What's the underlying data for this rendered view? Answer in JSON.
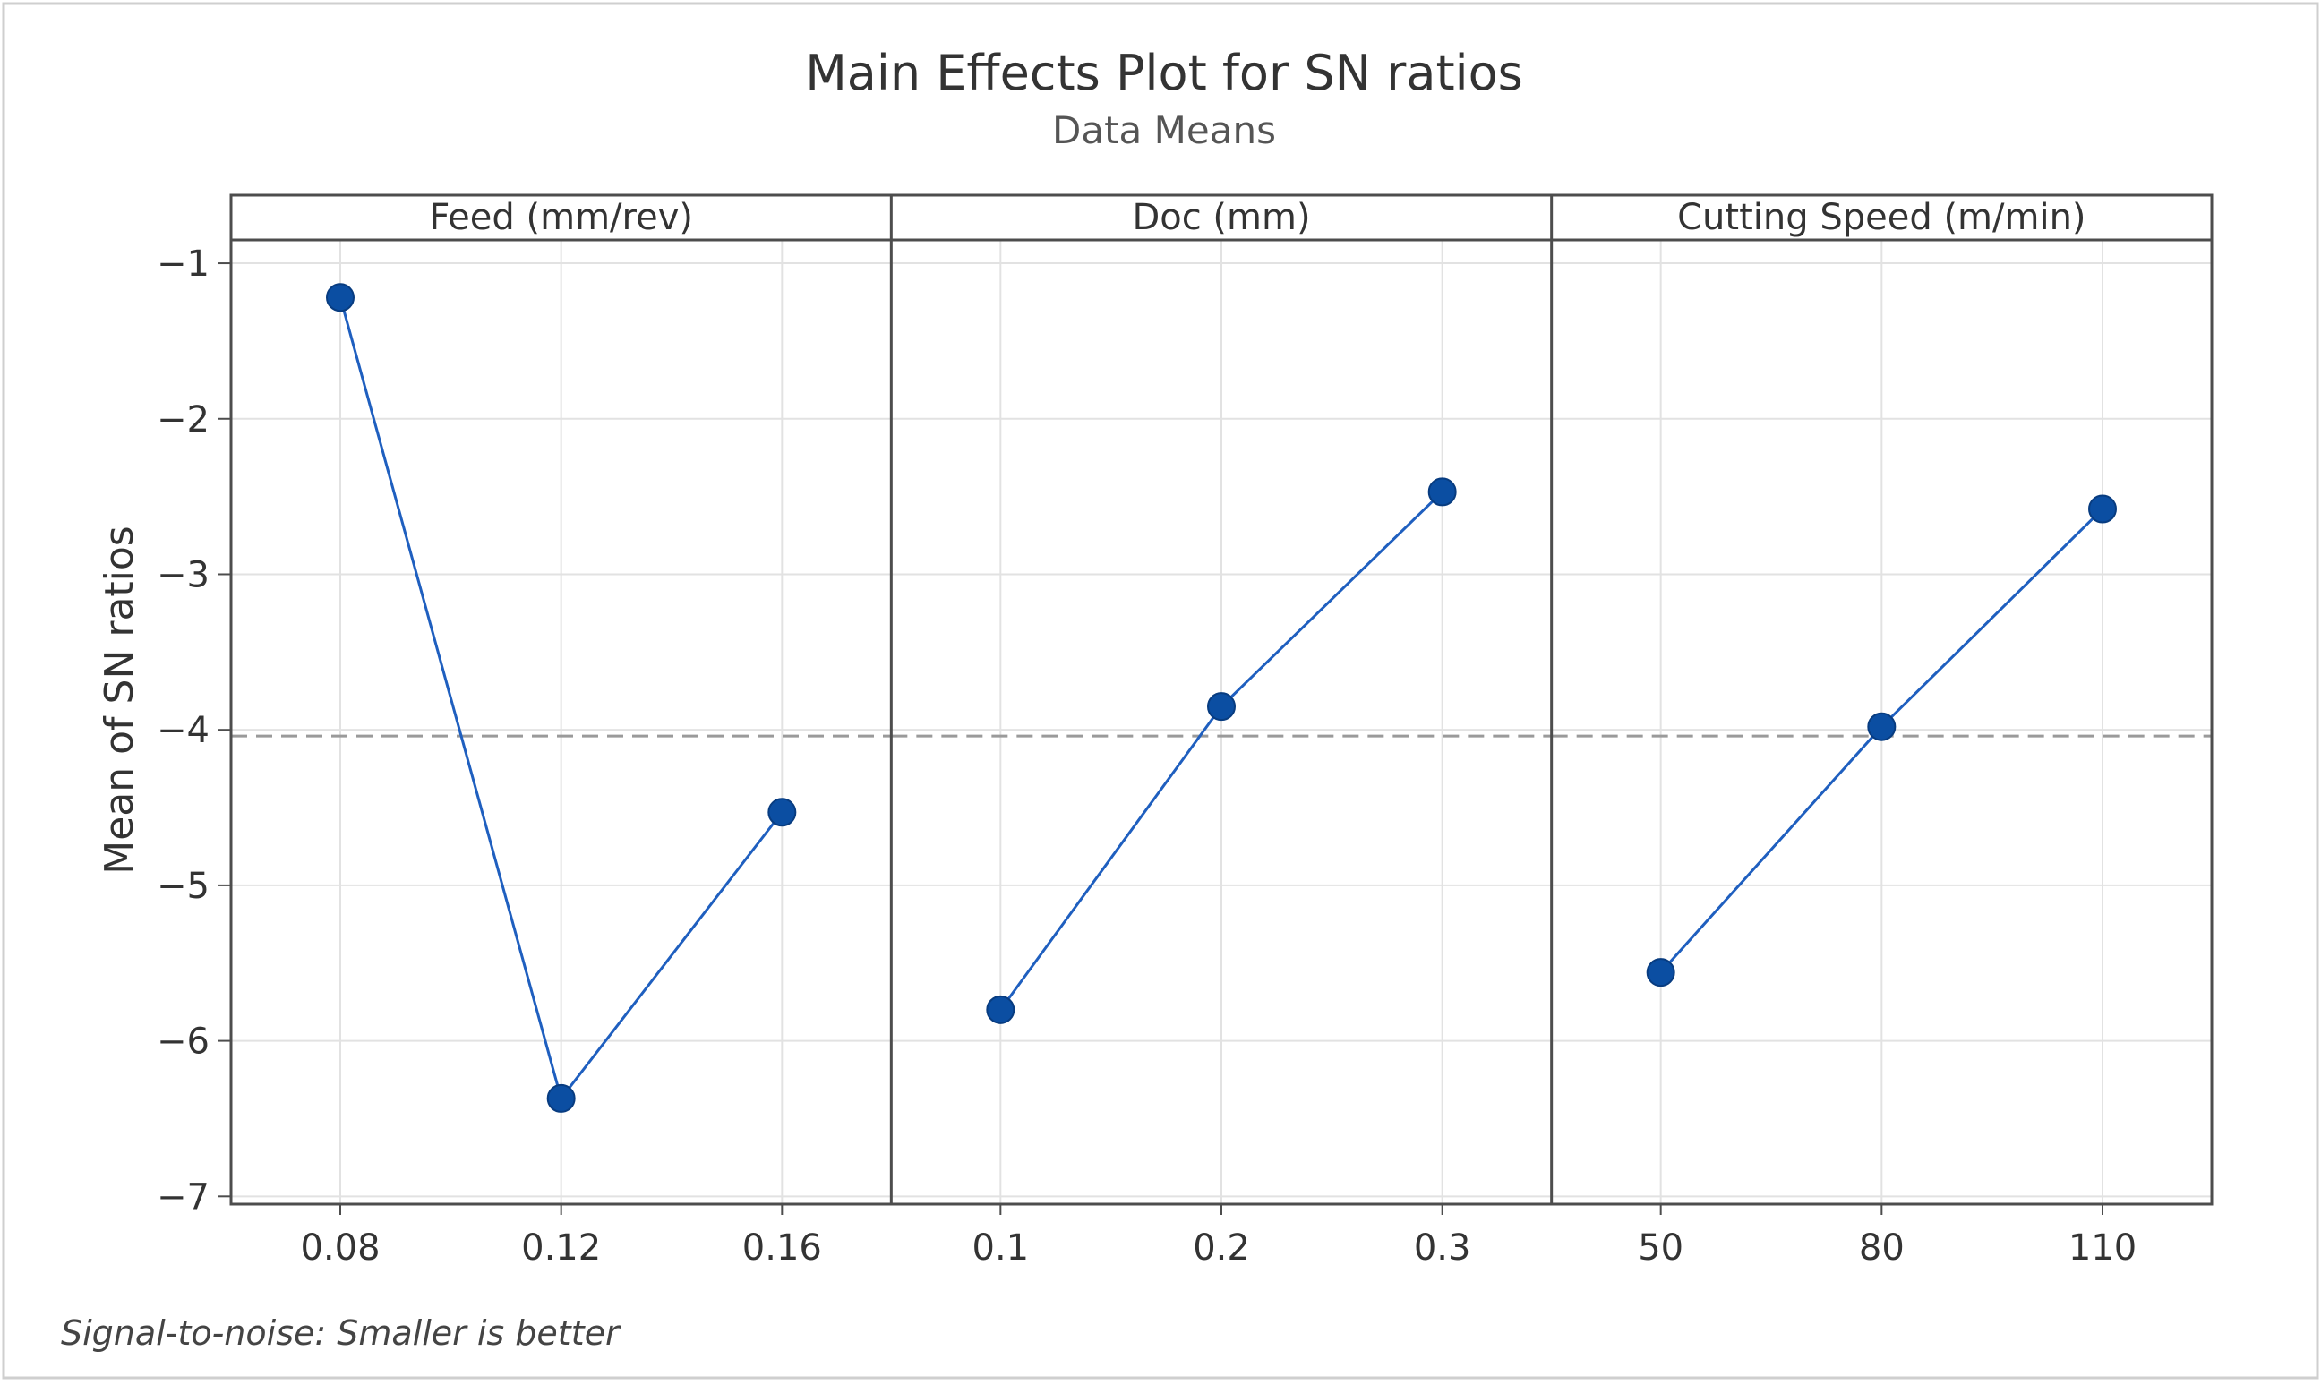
{
  "chart_data": {
    "type": "line",
    "title": "Main Effects Plot for SN ratios",
    "subtitle": "Data Means",
    "ylabel": "Mean of SN ratios",
    "ylim": [
      -7.05,
      -0.85
    ],
    "yticks": [
      -1,
      -2,
      -3,
      -4,
      -5,
      -6,
      -7
    ],
    "ytick_labels": [
      "−1",
      "−2",
      "−3",
      "−4",
      "−5",
      "−6",
      "−7"
    ],
    "grand_mean": -4.04,
    "footnote": "Signal-to-noise: Smaller is better",
    "panels": [
      {
        "name": "Feed (mm/rev)",
        "categories": [
          "0.08",
          "0.12",
          "0.16"
        ],
        "values": [
          -1.22,
          -6.37,
          -4.53
        ]
      },
      {
        "name": "Doc (mm)",
        "categories": [
          "0.1",
          "0.2",
          "0.3"
        ],
        "values": [
          -5.8,
          -3.85,
          -2.47
        ]
      },
      {
        "name": "Cutting Speed (m/min)",
        "categories": [
          "50",
          "80",
          "110"
        ],
        "values": [
          -5.56,
          -3.98,
          -2.58
        ]
      }
    ],
    "colors": {
      "line": "#1f5fbf",
      "marker": "#0b4ea2",
      "grid": "#e2e2e2",
      "frame": "#4d4d4d",
      "mean_line": "#9a9a9a",
      "text": "#333333"
    }
  }
}
